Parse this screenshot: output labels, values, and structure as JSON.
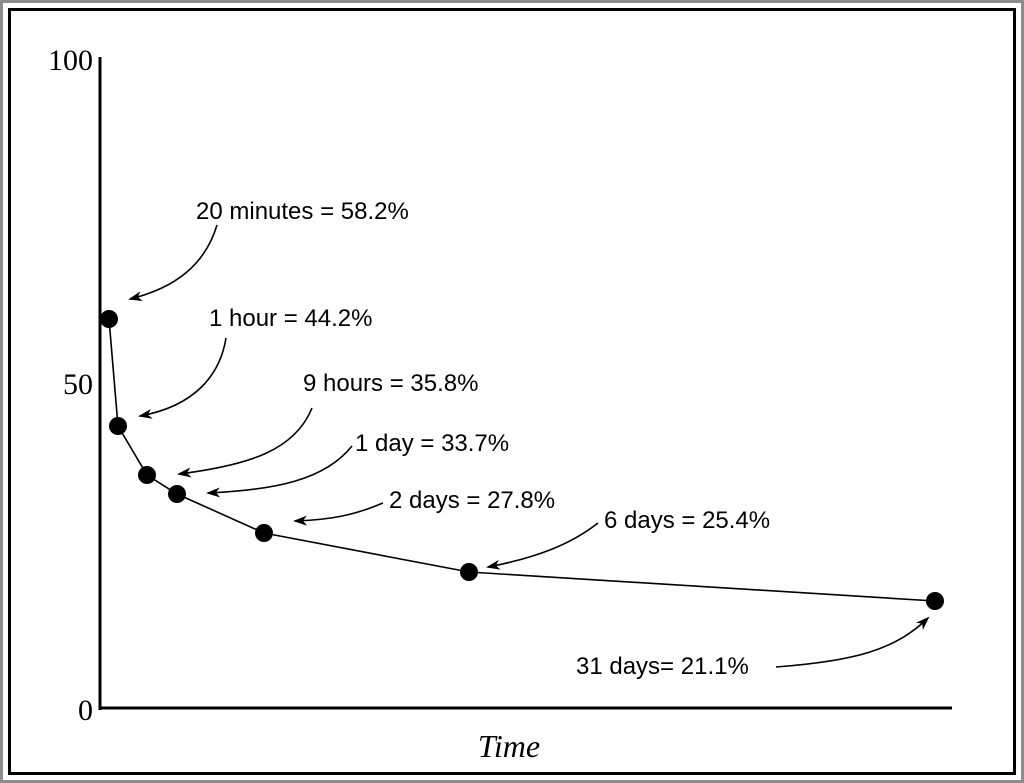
{
  "chart_data": {
    "type": "line",
    "xlabel": "Time",
    "ylabel": "",
    "ylim": [
      0,
      100
    ],
    "y_ticks": [
      "0",
      "50",
      "100"
    ],
    "grid": false,
    "color": "#000000",
    "points": [
      {
        "x": "20 minutes",
        "y": 58.2,
        "label": "20 minutes = 58.2%"
      },
      {
        "x": "1 hour",
        "y": 44.2,
        "label": "1 hour = 44.2%"
      },
      {
        "x": "9 hours",
        "y": 35.8,
        "label": "9 hours = 35.8%"
      },
      {
        "x": "1 day",
        "y": 33.7,
        "label": "1 day = 33.7%"
      },
      {
        "x": "2 days",
        "y": 27.8,
        "label": "2 days = 27.8%"
      },
      {
        "x": "6 days",
        "y": 25.4,
        "label": "6 days = 25.4%"
      },
      {
        "x": "31 days",
        "y": 21.1,
        "label": "31 days= 21.1%"
      }
    ]
  }
}
